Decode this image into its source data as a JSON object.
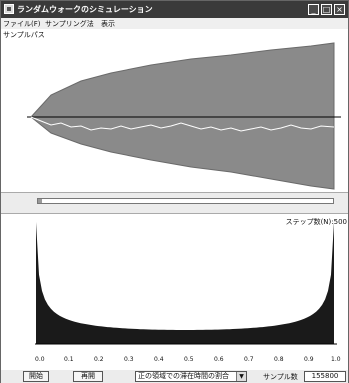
{
  "window": {
    "title": "ランダムウォークのシミュレーション"
  },
  "menu": [
    {
      "label": "ファイル(F)"
    },
    {
      "label": "サンプリング法"
    },
    {
      "label": "表示"
    }
  ],
  "top_panel": {
    "label": "サンプルパス"
  },
  "bottom_panel": {
    "step_label": "ステップ数(N):500"
  },
  "chart_data": {
    "type": "bar",
    "x_ticks": [
      "0.0",
      "0.1",
      "0.2",
      "0.3",
      "0.4",
      "0.5",
      "0.6",
      "0.7",
      "0.8",
      "0.9",
      "1.0"
    ],
    "xlim": [
      0,
      1
    ],
    "bins": 100,
    "grid": false
  },
  "statusbar": {
    "start_button": "開始",
    "restart_button": "再開",
    "mode_select": "正の領域での滞在時間の割合",
    "sample_label": "サンプル数",
    "sample_value": "155800"
  },
  "colors": {
    "titlebar": "#3a3a3a",
    "paths": "#888888",
    "histogram": "#1a1a1a"
  }
}
